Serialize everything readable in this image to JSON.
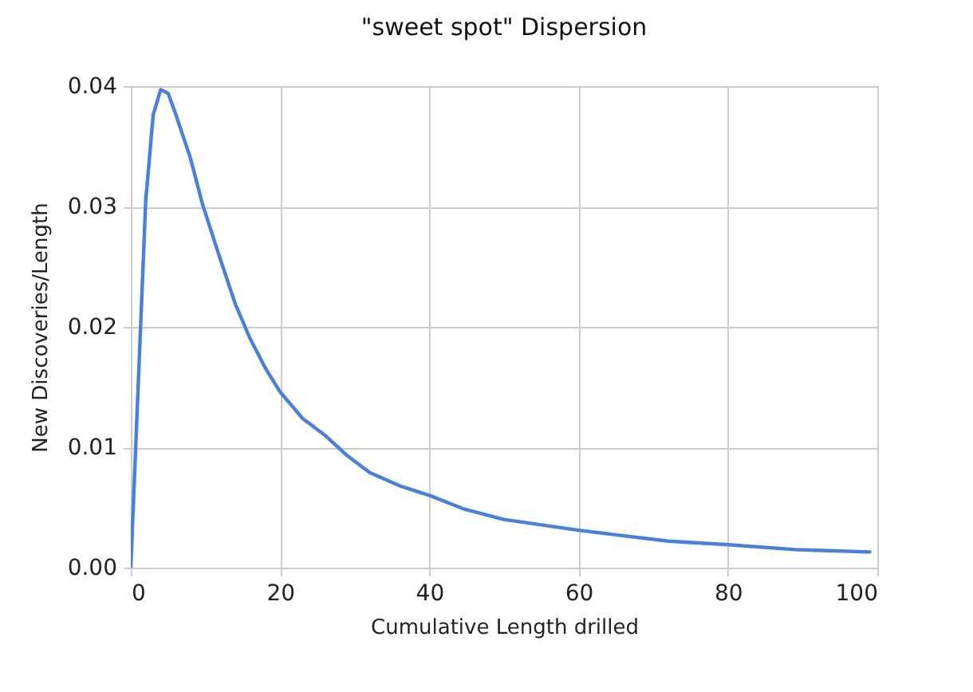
{
  "chart_data": {
    "type": "line",
    "title": "\"sweet spot\" Dispersion",
    "xlabel": "Cumulative Length drilled",
    "ylabel": "New Discoveries/Length",
    "x": [
      0,
      2,
      3,
      4,
      5,
      6,
      8,
      9.6,
      12,
      14,
      16,
      18,
      20,
      23,
      26,
      29,
      32,
      36,
      40,
      44.5,
      50,
      60,
      72,
      80,
      89,
      99
    ],
    "series": [
      {
        "color": "#4a7fdc",
        "values": [
          0,
          0.0305,
          0.0376,
          0.0397,
          0.0394,
          0.0377,
          0.034,
          0.0302,
          0.0256,
          0.0219,
          0.019,
          0.0166,
          0.0146,
          0.0124,
          0.011,
          0.0093,
          0.0079,
          0.0068,
          0.006,
          0.0049,
          0.004,
          0.0031,
          0.0022,
          0.0019,
          0.0015,
          0.0013
        ]
      }
    ],
    "xlim": [
      0,
      100
    ],
    "xticks": [
      0,
      20,
      40,
      60,
      80,
      100
    ],
    "ylim": [
      0,
      0.04
    ],
    "yticks": [
      {
        "value": 0,
        "label": "0.00"
      },
      {
        "value": 0.01,
        "label": "0.01"
      },
      {
        "value": 0.02,
        "label": "0.02"
      },
      {
        "value": 0.03,
        "label": "0.03"
      },
      {
        "value": 0.04,
        "label": "0.04"
      }
    ],
    "grid": true,
    "line_style": "solid"
  }
}
